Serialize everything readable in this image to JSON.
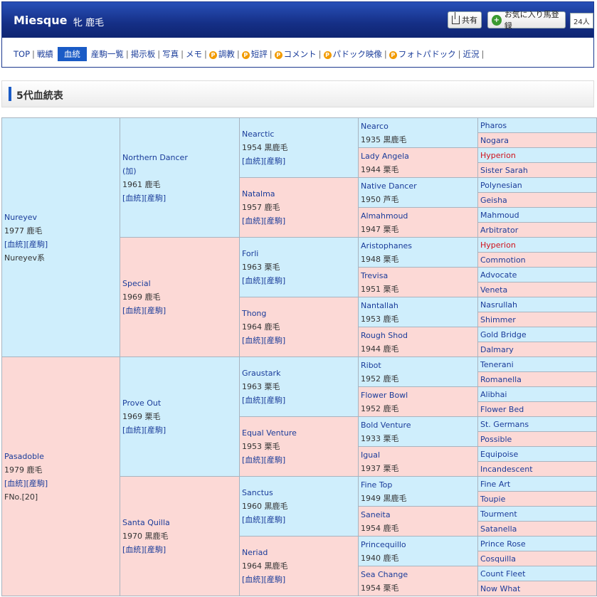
{
  "header": {
    "horse_name": "Miesque",
    "horse_meta": "牝 鹿毛",
    "share_label": "共有",
    "fav_label": "お気に入り馬登録",
    "fav_count": "24人"
  },
  "nav": {
    "items": [
      "TOP",
      "戦績",
      "血統",
      "産駒一覧",
      "掲示板",
      "写真",
      "メモ",
      "調教",
      "短評",
      "コメント",
      "パドック映像",
      "フォトパドック",
      "近況"
    ],
    "premium": [
      false,
      false,
      false,
      false,
      false,
      false,
      false,
      true,
      true,
      true,
      true,
      true,
      false
    ],
    "active_index": 2
  },
  "section_title": "5代血統表",
  "links_label": "[血統][産駒]",
  "pedigree": {
    "g1": [
      {
        "name": "Nureyev",
        "year": "1977 鹿毛",
        "extra": "Nureyev系",
        "sex": "m"
      },
      {
        "name": "Pasadoble",
        "year": "1979 鹿毛",
        "extra": "FNo.[20]",
        "sex": "f"
      }
    ],
    "g2": [
      {
        "name": "Northern Dancer",
        "note": "(加)",
        "year": "1961 鹿毛",
        "sex": "m"
      },
      {
        "name": "Special",
        "year": "1969 鹿毛",
        "sex": "f"
      },
      {
        "name": "Prove Out",
        "year": "1969 栗毛",
        "sex": "m"
      },
      {
        "name": "Santa Quilla",
        "year": "1970 黒鹿毛",
        "sex": "f"
      }
    ],
    "g3": [
      {
        "name": "Nearctic",
        "year": "1954 黒鹿毛",
        "sex": "m"
      },
      {
        "name": "Natalma",
        "year": "1957 鹿毛",
        "sex": "f"
      },
      {
        "name": "Forli",
        "year": "1963 栗毛",
        "sex": "m"
      },
      {
        "name": "Thong",
        "year": "1964 鹿毛",
        "sex": "f"
      },
      {
        "name": "Graustark",
        "year": "1963 栗毛",
        "sex": "m"
      },
      {
        "name": "Equal Venture",
        "year": "1953 栗毛",
        "sex": "f"
      },
      {
        "name": "Sanctus",
        "year": "1960 黒鹿毛",
        "sex": "m"
      },
      {
        "name": "Neriad",
        "year": "1964 黒鹿毛",
        "sex": "f"
      }
    ],
    "g4": [
      {
        "name": "Nearco",
        "year": "1935 黒鹿毛",
        "sex": "m"
      },
      {
        "name": "Lady Angela",
        "year": "1944 栗毛",
        "sex": "f"
      },
      {
        "name": "Native Dancer",
        "year": "1950 芦毛",
        "sex": "m"
      },
      {
        "name": "Almahmoud",
        "year": "1947 栗毛",
        "sex": "f"
      },
      {
        "name": "Aristophanes",
        "year": "1948 栗毛",
        "sex": "m"
      },
      {
        "name": "Trevisa",
        "year": "1951 栗毛",
        "sex": "f"
      },
      {
        "name": "Nantallah",
        "year": "1953 鹿毛",
        "sex": "m"
      },
      {
        "name": "Rough Shod",
        "year": "1944 鹿毛",
        "sex": "f"
      },
      {
        "name": "Ribot",
        "year": "1952 鹿毛",
        "sex": "m"
      },
      {
        "name": "Flower Bowl",
        "year": "1952 鹿毛",
        "sex": "f"
      },
      {
        "name": "Bold Venture",
        "year": "1933 栗毛",
        "sex": "m"
      },
      {
        "name": "Igual",
        "year": "1937 栗毛",
        "sex": "f"
      },
      {
        "name": "Fine Top",
        "year": "1949 黒鹿毛",
        "sex": "m"
      },
      {
        "name": "Saneita",
        "year": "1954 鹿毛",
        "sex": "f"
      },
      {
        "name": "Princequillo",
        "year": "1940 鹿毛",
        "sex": "m"
      },
      {
        "name": "Sea Change",
        "year": "1954 栗毛",
        "sex": "f"
      }
    ],
    "g5": [
      {
        "name": "Pharos",
        "sex": "m"
      },
      {
        "name": "Nogara",
        "sex": "f"
      },
      {
        "name": "Hyperion",
        "sex": "m",
        "red": true
      },
      {
        "name": "Sister Sarah",
        "sex": "f"
      },
      {
        "name": "Polynesian",
        "sex": "m"
      },
      {
        "name": "Geisha",
        "sex": "f"
      },
      {
        "name": "Mahmoud",
        "sex": "m"
      },
      {
        "name": "Arbitrator",
        "sex": "f"
      },
      {
        "name": "Hyperion",
        "sex": "m",
        "red": true
      },
      {
        "name": "Commotion",
        "sex": "f"
      },
      {
        "name": "Advocate",
        "sex": "m"
      },
      {
        "name": "Veneta",
        "sex": "f"
      },
      {
        "name": "Nasrullah",
        "sex": "m"
      },
      {
        "name": "Shimmer",
        "sex": "f"
      },
      {
        "name": "Gold Bridge",
        "sex": "m"
      },
      {
        "name": "Dalmary",
        "sex": "f"
      },
      {
        "name": "Tenerani",
        "sex": "m"
      },
      {
        "name": "Romanella",
        "sex": "f"
      },
      {
        "name": "Alibhai",
        "sex": "m"
      },
      {
        "name": "Flower Bed",
        "sex": "f"
      },
      {
        "name": "St. Germans",
        "sex": "m"
      },
      {
        "name": "Possible",
        "sex": "f"
      },
      {
        "name": "Equipoise",
        "sex": "m"
      },
      {
        "name": "Incandescent",
        "sex": "f"
      },
      {
        "name": "Fine Art",
        "sex": "m"
      },
      {
        "name": "Toupie",
        "sex": "f"
      },
      {
        "name": "Tourment",
        "sex": "m"
      },
      {
        "name": "Satanella",
        "sex": "f"
      },
      {
        "name": "Prince Rose",
        "sex": "m"
      },
      {
        "name": "Cosquilla",
        "sex": "f"
      },
      {
        "name": "Count Fleet",
        "sex": "m"
      },
      {
        "name": "Now What",
        "sex": "f"
      }
    ]
  }
}
